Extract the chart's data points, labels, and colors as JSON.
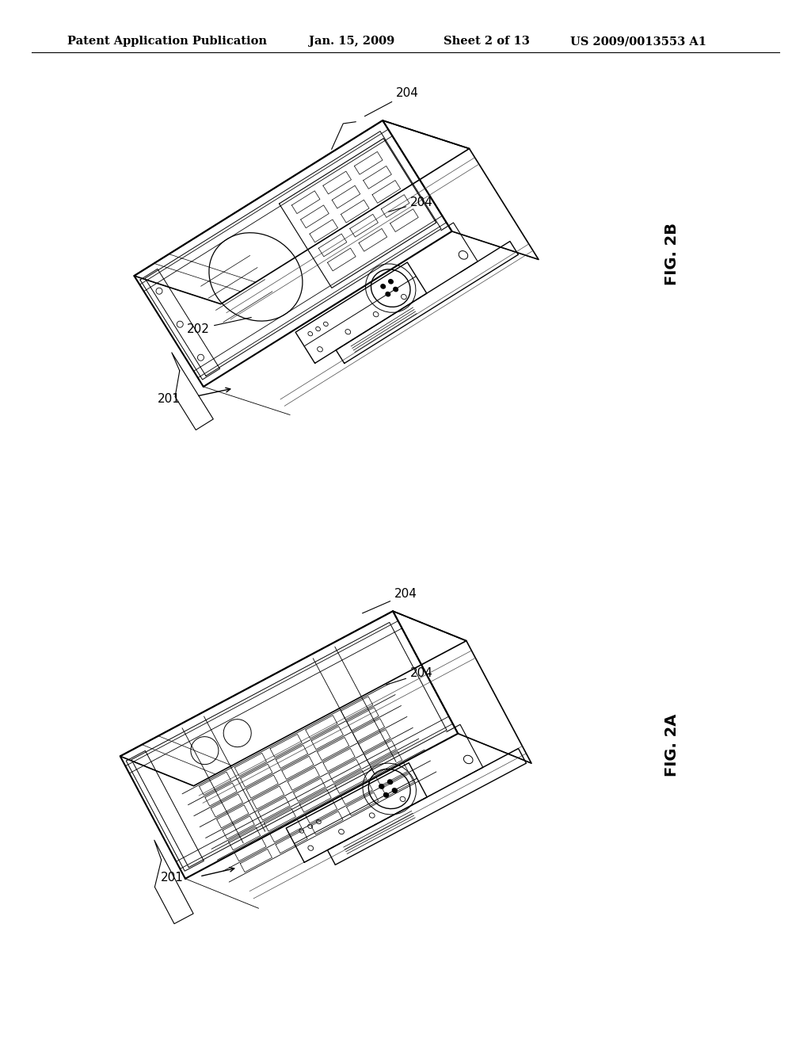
{
  "background_color": "#ffffff",
  "page_width": 10.24,
  "page_height": 13.2,
  "header_text": "Patent Application Publication",
  "header_date": "Jan. 15, 2009",
  "header_sheet": "Sheet 2 of 13",
  "header_patent": "US 2009/0013553 A1",
  "header_fontsize": 10.5,
  "fig2b_label": "FIG. 2B",
  "fig2a_label": "FIG. 2A",
  "fig_label_fontsize": 14,
  "line_color": "#000000",
  "text_color": "#000000",
  "ref_fontsize": 11
}
